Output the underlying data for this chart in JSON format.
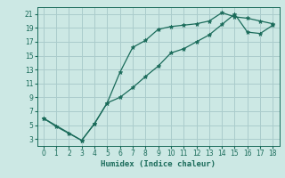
{
  "xlabel": "Humidex (Indice chaleur)",
  "background_color": "#cce8e4",
  "grid_color": "#aacccc",
  "line_color": "#1a6b5a",
  "marker_color": "#1a6b5a",
  "xlim": [
    -0.5,
    18.5
  ],
  "ylim": [
    2,
    22
  ],
  "xticks": [
    0,
    1,
    2,
    3,
    4,
    5,
    6,
    7,
    8,
    9,
    10,
    11,
    12,
    13,
    14,
    15,
    16,
    17,
    18
  ],
  "yticks": [
    3,
    5,
    7,
    9,
    11,
    13,
    15,
    17,
    19,
    21
  ],
  "line1_x": [
    0,
    1,
    2,
    3,
    4,
    5,
    6,
    7,
    8,
    9,
    10,
    11,
    12,
    13,
    14,
    15,
    16,
    17,
    18
  ],
  "line1_y": [
    6.0,
    4.8,
    3.8,
    2.8,
    5.2,
    8.2,
    12.6,
    16.2,
    17.2,
    18.8,
    19.2,
    19.4,
    19.6,
    20.0,
    21.2,
    20.6,
    20.4,
    20.0,
    19.6
  ],
  "line2_x": [
    0,
    3,
    4,
    5,
    6,
    7,
    8,
    9,
    10,
    11,
    12,
    13,
    14,
    15,
    16,
    17,
    18
  ],
  "line2_y": [
    6.0,
    2.8,
    5.2,
    8.2,
    9.0,
    10.4,
    12.0,
    13.5,
    15.4,
    16.0,
    17.0,
    18.0,
    19.5,
    21.0,
    18.4,
    18.2,
    19.4
  ]
}
